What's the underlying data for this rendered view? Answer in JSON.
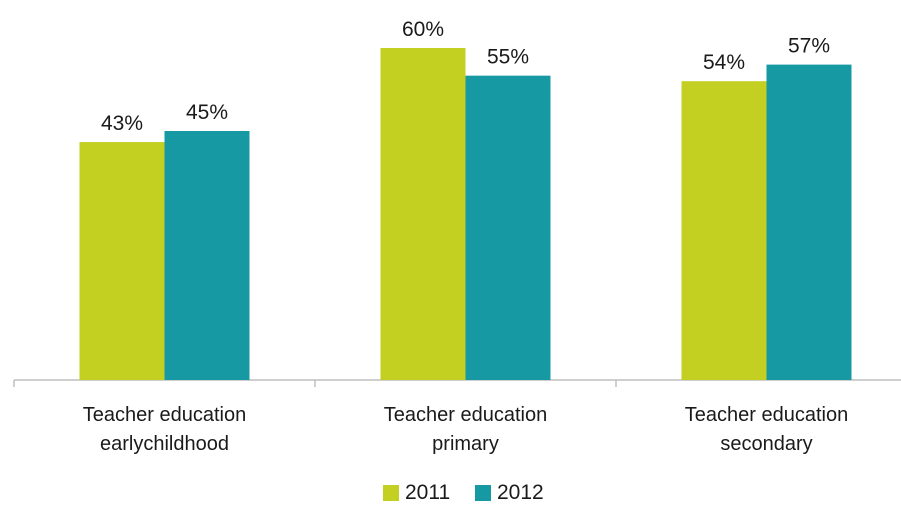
{
  "chart_data": {
    "type": "bar",
    "categories": [
      [
        "Teacher education",
        "earlychildhood"
      ],
      [
        "Teacher education",
        "primary"
      ],
      [
        "Teacher education",
        "secondary"
      ]
    ],
    "series": [
      {
        "name": "2011",
        "values": [
          43,
          60,
          54
        ],
        "labels": [
          "43%",
          "60%",
          "54%"
        ],
        "color": "#c3cf21"
      },
      {
        "name": "2012",
        "values": [
          45,
          55,
          57
        ],
        "labels": [
          "45%",
          "55%",
          "57%"
        ],
        "color": "#1699a3"
      }
    ],
    "ylim": [
      0,
      60
    ],
    "unit": "%",
    "grid": false,
    "legend_position": "bottom-center",
    "axis_color": "#bfbfbf"
  }
}
